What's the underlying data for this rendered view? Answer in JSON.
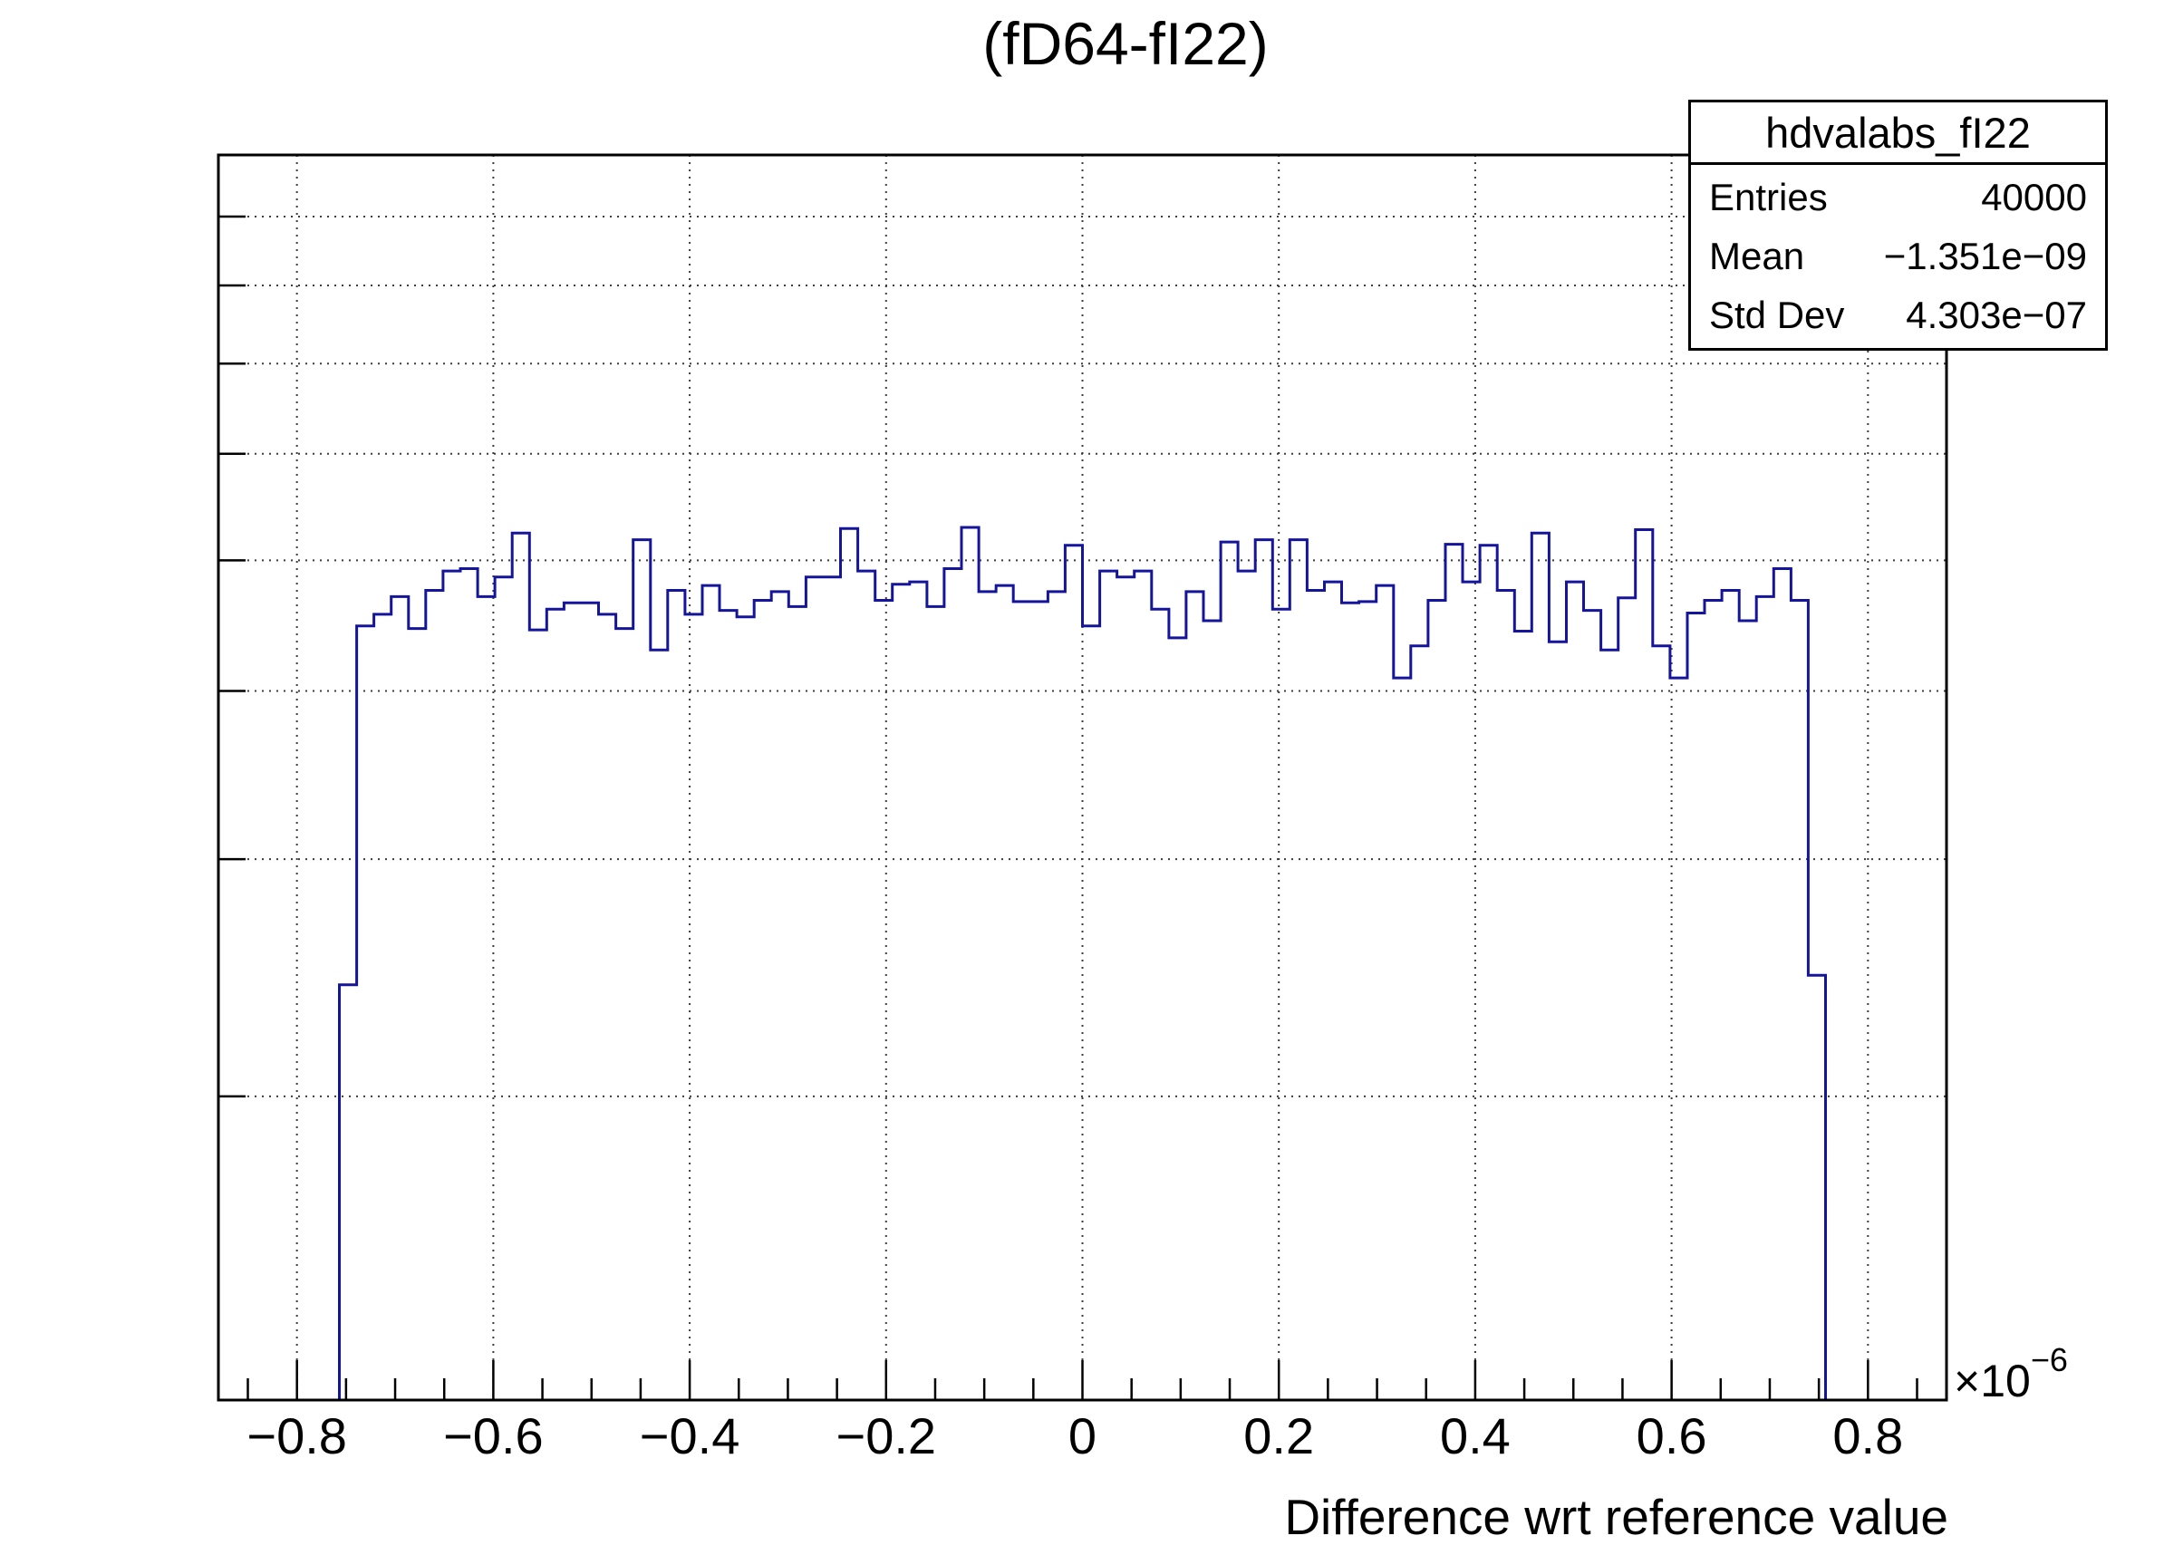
{
  "title": "(fD64-fI22)",
  "stats": {
    "name": "hdvalabs_fI22",
    "rows": [
      {
        "label": "Entries",
        "value": "40000"
      },
      {
        "label": "Mean",
        "value": "−1.351e−09"
      },
      {
        "label": "Std Dev",
        "value": "4.303e−07"
      }
    ]
  },
  "axes": {
    "x_label": "Difference wrt reference value",
    "x_multiplier_base": "×10",
    "x_multiplier_exp": "−6",
    "x_tick_labels": [
      "−0.8",
      "−0.6",
      "−0.4",
      "−0.2",
      "0",
      "0.2",
      "0.4",
      "0.6",
      "0.8"
    ],
    "x_tick_values": [
      -0.8,
      -0.6,
      -0.4,
      -0.2,
      0,
      0.2,
      0.4,
      0.6,
      0.8
    ],
    "y_tick_labels": []
  },
  "chart_data": {
    "type": "bar",
    "subtype": "step-histogram",
    "title": "(fD64-fI22)",
    "xlabel": "Difference wrt reference value",
    "ylabel": "",
    "histogram_name": "hdvalabs_fI22",
    "entries": 40000,
    "mean": -1.351e-09,
    "std_dev": 4.303e-07,
    "x_range": [
      -8.8e-07,
      8.8e-07
    ],
    "n_bins": 100,
    "bin_width": 1.76e-08,
    "y_scale": "log",
    "y_range": [
      119,
      1000
    ],
    "y_ticks": [
      200,
      300,
      400,
      500,
      600,
      700,
      800,
      900
    ],
    "x_major_step": 2e-07,
    "x_minor_step": 5e-08,
    "grid": true,
    "legend_position": "none",
    "line_color": "#15159b",
    "grid_color": "#3c3c3c",
    "frame_color": "#000000",
    "values": [
      0,
      0,
      0,
      0,
      0,
      0,
      0,
      242,
      447,
      456,
      470,
      445,
      475,
      491,
      493,
      470,
      486,
      524,
      444,
      460,
      465,
      465,
      456,
      445,
      518,
      429,
      475,
      456,
      479,
      459,
      454,
      467,
      474,
      462,
      486,
      486,
      528,
      491,
      467,
      480,
      482,
      462,
      493,
      529,
      474,
      479,
      466,
      466,
      474,
      513,
      447,
      491,
      486,
      491,
      460,
      438,
      474,
      451,
      516,
      491,
      518,
      460,
      518,
      475,
      482,
      465,
      466,
      479,
      409,
      432,
      467,
      514,
      482,
      513,
      475,
      443,
      524,
      435,
      482,
      459,
      429,
      469,
      527,
      432,
      409,
      457,
      467,
      475,
      451,
      470,
      493,
      467,
      246,
      0,
      0,
      0,
      0,
      0,
      0,
      0
    ]
  }
}
